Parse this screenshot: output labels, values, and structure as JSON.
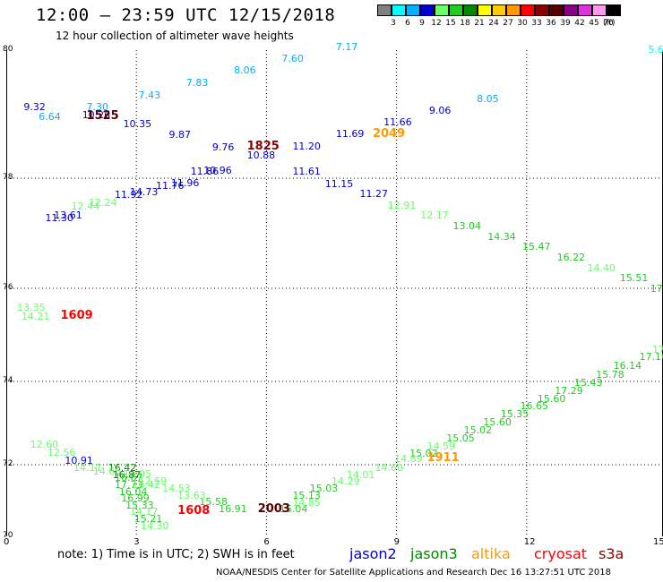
{
  "header": {
    "title": "12:00 – 23:59 UTC 12/15/2018",
    "subtitle": "12 hour collection of altimeter wave heights"
  },
  "legend": {
    "bins": [
      {
        "label": "3",
        "color": "#808080"
      },
      {
        "label": "6",
        "color": "#00ffff"
      },
      {
        "label": "9",
        "color": "#00b0ff"
      },
      {
        "label": "12",
        "color": "#0000cd"
      },
      {
        "label": "15",
        "color": "#66ff66"
      },
      {
        "label": "18",
        "color": "#22cc22"
      },
      {
        "label": "21",
        "color": "#008800"
      },
      {
        "label": "24",
        "color": "#ffff00"
      },
      {
        "label": "27",
        "color": "#ffcc00"
      },
      {
        "label": "30",
        "color": "#ff9900"
      },
      {
        "label": "33",
        "color": "#ff0000"
      },
      {
        "label": "36",
        "color": "#880000"
      },
      {
        "label": "39",
        "color": "#550000"
      },
      {
        "label": "42",
        "color": "#880088"
      },
      {
        "label": "45",
        "color": "#dd33dd"
      },
      {
        "label": "70",
        "color": "#ff99ee"
      },
      {
        "label": "",
        "color": "#000000"
      }
    ],
    "unit": "(ft)"
  },
  "axes": {
    "x_ticks": [
      0,
      3,
      6,
      9,
      12,
      15
    ],
    "y_ticks": [
      80,
      78,
      76,
      74,
      72,
      70
    ]
  },
  "observations": [
    {
      "text": "9.32",
      "c": "#0000cd",
      "x": 0.4,
      "y": 79.12
    },
    {
      "text": "6.64",
      "c": "#00b0ff",
      "x": 0.75,
      "y": 78.97
    },
    {
      "text": "7.30",
      "c": "#00b0ff",
      "x": 1.85,
      "y": 79.12
    },
    {
      "text": "10.26",
      "c": "#0000cd",
      "x": 1.75,
      "y": 78.99
    },
    {
      "text": "1525",
      "c": "#550000",
      "x": 1.85,
      "y": 78.96
    },
    {
      "text": "7.43",
      "c": "#00b0ff",
      "x": 3.05,
      "y": 79.3
    },
    {
      "text": "10.35",
      "c": "#0000cd",
      "x": 2.7,
      "y": 78.86
    },
    {
      "text": "7.83",
      "c": "#00b0ff",
      "x": 4.15,
      "y": 79.49
    },
    {
      "text": "9.87",
      "c": "#0000cd",
      "x": 3.75,
      "y": 78.68
    },
    {
      "text": "8.06",
      "c": "#00b0ff",
      "x": 5.25,
      "y": 79.69
    },
    {
      "text": "9.76",
      "c": "#0000cd",
      "x": 4.75,
      "y": 78.49
    },
    {
      "text": "1825",
      "c": "#880000",
      "x": 5.55,
      "y": 78.49
    },
    {
      "text": "10.88",
      "c": "#0000cd",
      "x": 5.55,
      "y": 78.36
    },
    {
      "text": "11.20",
      "c": "#0000cd",
      "x": 6.6,
      "y": 78.51
    },
    {
      "text": "7.60",
      "c": "#00b0ff",
      "x": 6.35,
      "y": 79.88
    },
    {
      "text": "7.17",
      "c": "#00b0ff",
      "x": 7.6,
      "y": 80.06
    },
    {
      "text": "11.69",
      "c": "#0000cd",
      "x": 7.6,
      "y": 78.7
    },
    {
      "text": "2049",
      "c": "#ff9900",
      "x": 8.45,
      "y": 78.69
    },
    {
      "text": "11.66",
      "c": "#0000cd",
      "x": 8.7,
      "y": 78.88
    },
    {
      "text": "9.06",
      "c": "#0000cd",
      "x": 9.75,
      "y": 79.06
    },
    {
      "text": "8.05",
      "c": "#00b0ff",
      "x": 10.85,
      "y": 79.25
    },
    {
      "text": "5.68",
      "c": "#00ffff",
      "x": 14.8,
      "y": 80.02
    },
    {
      "text": "11.61",
      "c": "#0000cd",
      "x": 6.6,
      "y": 78.11
    },
    {
      "text": "11.15",
      "c": "#0000cd",
      "x": 7.35,
      "y": 77.91
    },
    {
      "text": "11.27",
      "c": "#0000cd",
      "x": 8.15,
      "y": 77.72
    },
    {
      "text": "10.96",
      "c": "#0000cd",
      "x": 4.55,
      "y": 78.13
    },
    {
      "text": "11.86",
      "c": "#0000cd",
      "x": 4.25,
      "y": 78.11
    },
    {
      "text": "11.96",
      "c": "#0000cd",
      "x": 3.8,
      "y": 77.92
    },
    {
      "text": "11.76",
      "c": "#0000cd",
      "x": 3.45,
      "y": 77.87
    },
    {
      "text": "14.73",
      "c": "#0000cd",
      "x": 2.85,
      "y": 77.76
    },
    {
      "text": "11.92",
      "c": "#0000cd",
      "x": 2.5,
      "y": 77.71
    },
    {
      "text": "12.24",
      "c": "#66ff66",
      "x": 1.9,
      "y": 77.56
    },
    {
      "text": "12.44",
      "c": "#66ff66",
      "x": 1.5,
      "y": 77.5
    },
    {
      "text": "13.61",
      "c": "#0000cd",
      "x": 1.1,
      "y": 77.33
    },
    {
      "text": "11.30",
      "c": "#0000cd",
      "x": 0.9,
      "y": 77.28
    },
    {
      "text": "12.91",
      "c": "#66ff66",
      "x": 8.8,
      "y": 77.52
    },
    {
      "text": "12.17",
      "c": "#66ff66",
      "x": 9.55,
      "y": 77.33
    },
    {
      "text": "13.04",
      "c": "#22cc22",
      "x": 10.3,
      "y": 77.14
    },
    {
      "text": "14.34",
      "c": "#22cc22",
      "x": 11.1,
      "y": 76.95
    },
    {
      "text": "15.47",
      "c": "#22cc22",
      "x": 11.9,
      "y": 76.76
    },
    {
      "text": "16.22",
      "c": "#22cc22",
      "x": 12.7,
      "y": 76.57
    },
    {
      "text": "14.40",
      "c": "#66ff66",
      "x": 13.4,
      "y": 76.38
    },
    {
      "text": "15.51",
      "c": "#22cc22",
      "x": 14.15,
      "y": 76.19
    },
    {
      "text": "17.4",
      "c": "#22cc22",
      "x": 14.85,
      "y": 76.0
    },
    {
      "text": "13.35",
      "c": "#66ff66",
      "x": 0.25,
      "y": 75.6
    },
    {
      "text": "14.21",
      "c": "#66ff66",
      "x": 0.35,
      "y": 75.4
    },
    {
      "text": "1609",
      "c": "#ff0000",
      "x": 1.25,
      "y": 75.4
    },
    {
      "text": "17.16",
      "c": "#22cc22",
      "x": 14.6,
      "y": 74.53
    },
    {
      "text": "17",
      "c": "#66ff66",
      "x": 14.9,
      "y": 74.7
    },
    {
      "text": "16.14",
      "c": "#22cc22",
      "x": 14.0,
      "y": 74.35
    },
    {
      "text": "15.78",
      "c": "#22cc22",
      "x": 13.6,
      "y": 74.16
    },
    {
      "text": "15.43",
      "c": "#22cc22",
      "x": 13.1,
      "y": 73.97
    },
    {
      "text": "17.29",
      "c": "#22cc22",
      "x": 12.65,
      "y": 73.79
    },
    {
      "text": "15.60",
      "c": "#22cc22",
      "x": 12.25,
      "y": 73.6
    },
    {
      "text": "16.65",
      "c": "#22cc22",
      "x": 11.85,
      "y": 73.41
    },
    {
      "text": "15.35",
      "c": "#22cc22",
      "x": 11.4,
      "y": 73.22
    },
    {
      "text": "15.60",
      "c": "#22cc22",
      "x": 11.0,
      "y": 73.03
    },
    {
      "text": "15.02",
      "c": "#22cc22",
      "x": 10.55,
      "y": 72.84
    },
    {
      "text": "15.05",
      "c": "#22cc22",
      "x": 10.15,
      "y": 72.65
    },
    {
      "text": "14.59",
      "c": "#66ff66",
      "x": 9.7,
      "y": 72.46
    },
    {
      "text": "15.02",
      "c": "#22cc22",
      "x": 9.3,
      "y": 72.27
    },
    {
      "text": "14.89",
      "c": "#66ff66",
      "x": 8.95,
      "y": 72.15
    },
    {
      "text": "1911",
      "c": "#ff9900",
      "x": 9.7,
      "y": 72.14
    },
    {
      "text": "14.60",
      "c": "#66ff66",
      "x": 8.5,
      "y": 71.92
    },
    {
      "text": "14.01",
      "c": "#66ff66",
      "x": 7.85,
      "y": 71.73
    },
    {
      "text": "14.29",
      "c": "#66ff66",
      "x": 7.5,
      "y": 71.54
    },
    {
      "text": "15.03",
      "c": "#22cc22",
      "x": 7.0,
      "y": 71.35
    },
    {
      "text": "15.13",
      "c": "#22cc22",
      "x": 6.6,
      "y": 71.16
    },
    {
      "text": "14.85",
      "c": "#66ff66",
      "x": 6.6,
      "y": 70.95
    },
    {
      "text": "15.04",
      "c": "#22cc22",
      "x": 6.3,
      "y": 70.77
    },
    {
      "text": "2003",
      "c": "#550000",
      "x": 5.8,
      "y": 70.74
    },
    {
      "text": "16.91",
      "c": "#22cc22",
      "x": 4.9,
      "y": 70.78
    },
    {
      "text": "15.58",
      "c": "#22cc22",
      "x": 4.45,
      "y": 70.97
    },
    {
      "text": "13.63",
      "c": "#66ff66",
      "x": 3.95,
      "y": 71.16
    },
    {
      "text": "1608",
      "c": "#ff0000",
      "x": 3.95,
      "y": 70.71
    },
    {
      "text": "14.53",
      "c": "#66ff66",
      "x": 3.6,
      "y": 71.35
    },
    {
      "text": "12.59",
      "c": "#66ff66",
      "x": 3.05,
      "y": 71.55
    },
    {
      "text": "13.05",
      "c": "#66ff66",
      "x": 2.7,
      "y": 71.74
    },
    {
      "text": "12.60",
      "c": "#66ff66",
      "x": 0.55,
      "y": 72.5
    },
    {
      "text": "12.56",
      "c": "#66ff66",
      "x": 0.95,
      "y": 72.3
    },
    {
      "text": "10.91",
      "c": "#0000cd",
      "x": 1.35,
      "y": 72.11
    },
    {
      "text": "14.11",
      "c": "#66ff66",
      "x": 1.55,
      "y": 71.92
    },
    {
      "text": "16.42",
      "c": "#008800",
      "x": 2.35,
      "y": 71.92
    },
    {
      "text": "14.66",
      "c": "#66ff66",
      "x": 2.0,
      "y": 71.83
    },
    {
      "text": "16.87",
      "c": "#008800",
      "x": 2.45,
      "y": 71.72
    },
    {
      "text": "16.67",
      "c": "#22cc22",
      "x": 2.5,
      "y": 71.64
    },
    {
      "text": "17.73",
      "c": "#22cc22",
      "x": 2.5,
      "y": 71.46
    },
    {
      "text": "16.42",
      "c": "#66ff66",
      "x": 2.9,
      "y": 71.46
    },
    {
      "text": "16.04",
      "c": "#22cc22",
      "x": 2.6,
      "y": 71.26
    },
    {
      "text": "16.99",
      "c": "#22cc22",
      "x": 2.65,
      "y": 71.07
    },
    {
      "text": "15.33",
      "c": "#22cc22",
      "x": 2.75,
      "y": 70.88
    },
    {
      "text": "14.17",
      "c": "#66ff66",
      "x": 2.85,
      "y": 70.69
    },
    {
      "text": "15.21",
      "c": "#22cc22",
      "x": 2.95,
      "y": 70.5
    },
    {
      "text": "14.30",
      "c": "#66ff66",
      "x": 3.1,
      "y": 70.31
    }
  ],
  "footer": {
    "note": "note:  1) Time is in UTC;  2) SWH is in feet",
    "satellites": [
      {
        "name": "jason2",
        "color": "#0000cd"
      },
      {
        "name": "jason3",
        "color": "#008800"
      },
      {
        "name": "altika",
        "color": "#ff9900"
      },
      {
        "name": "cryosat",
        "color": "#ff0000"
      },
      {
        "name": "s3a",
        "color": "#880000"
      }
    ],
    "credit": "NOAA/NESDIS Center for Satellite Applications and Research     Dec 16 13:27:51 UTC 2018"
  }
}
